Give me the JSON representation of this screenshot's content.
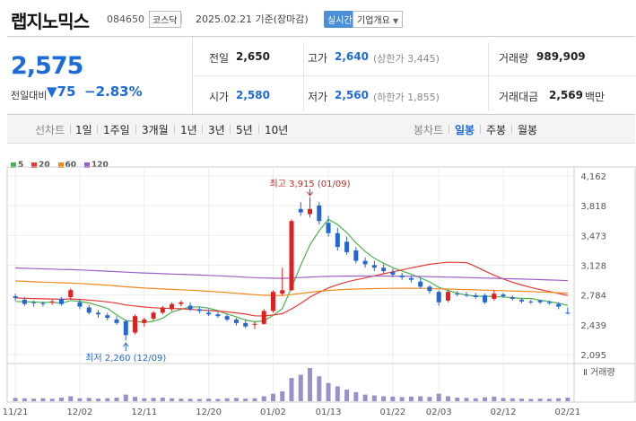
{
  "header": {
    "title": "랩지노믹스",
    "code": "084650",
    "market": "코스닥",
    "date": "2025.02.21 기준(장마감)",
    "realtime": "실시간",
    "overview": "기업개요"
  },
  "summary": {
    "price": "2,575",
    "change_label": "전일대비",
    "change_value": "75",
    "change_pct": "−2.83%",
    "prev_close_label": "전일",
    "prev_close": "2,650",
    "high_label": "고가",
    "high": "2,640",
    "upper_limit": "(상한가 3,445)",
    "volume_label": "거래량",
    "volume": "989,909",
    "open_label": "시가",
    "open": "2,580",
    "low_label": "저가",
    "low": "2,560",
    "lower_limit": "(하한가 1,855)",
    "trade_value_label": "거래대금",
    "trade_value": "2,569",
    "trade_value_unit": "백만"
  },
  "tabs": {
    "line_chart": "선차트",
    "periods": [
      "1일",
      "1주일",
      "3개월",
      "1년",
      "3년",
      "5년",
      "10년"
    ],
    "candle_chart": "봉차트",
    "candle_periods": [
      "일봉",
      "주봉",
      "월봉"
    ]
  },
  "chart_data": {
    "type": "candlestick",
    "legend": [
      "5",
      "20",
      "60",
      "120"
    ],
    "ma_colors": {
      "5": "#4caf50",
      "20": "#e53935",
      "60": "#ef8a1f",
      "120": "#9c5fc9"
    },
    "up_color": "#e02020",
    "down_color": "#2368d0",
    "y_ticks": [
      "4,162",
      "3,818",
      "3,473",
      "3,128",
      "2,784",
      "2,439",
      "2,095"
    ],
    "y_tick_values": [
      4162,
      3818,
      3473,
      3128,
      2784,
      2439,
      2095
    ],
    "ylim": [
      2095,
      4162
    ],
    "x_ticks": [
      "11/21",
      "12/02",
      "12/11",
      "12/20",
      "01/02",
      "01/13",
      "01/22",
      "02/03",
      "02/12",
      "02/21"
    ],
    "x_tick_index": [
      0,
      7,
      14,
      21,
      28,
      34,
      41,
      46,
      53,
      60
    ],
    "max_label": "최고 3,915 (01/09)",
    "max_index": 32,
    "min_label": "최저 2,260 (12/09)",
    "min_index": 12,
    "volume_label": "거래량",
    "candles": [
      [
        2770,
        2800,
        2720,
        2750
      ],
      [
        2730,
        2760,
        2660,
        2680
      ],
      [
        2700,
        2720,
        2650,
        2690
      ],
      [
        2690,
        2710,
        2650,
        2680
      ],
      [
        2700,
        2730,
        2670,
        2710
      ],
      [
        2740,
        2760,
        2660,
        2680
      ],
      [
        2760,
        2860,
        2740,
        2840
      ],
      [
        2700,
        2740,
        2620,
        2650
      ],
      [
        2640,
        2670,
        2560,
        2580
      ],
      [
        2580,
        2610,
        2520,
        2560
      ],
      [
        2550,
        2580,
        2490,
        2520
      ],
      [
        2500,
        2540,
        2440,
        2460
      ],
      [
        2480,
        2500,
        2260,
        2320
      ],
      [
        2350,
        2560,
        2330,
        2540
      ],
      [
        2460,
        2520,
        2420,
        2500
      ],
      [
        2510,
        2600,
        2490,
        2580
      ],
      [
        2580,
        2660,
        2560,
        2640
      ],
      [
        2620,
        2700,
        2600,
        2680
      ],
      [
        2680,
        2720,
        2650,
        2700
      ],
      [
        2660,
        2700,
        2600,
        2620
      ],
      [
        2620,
        2640,
        2570,
        2600
      ],
      [
        2580,
        2620,
        2540,
        2560
      ],
      [
        2560,
        2590,
        2520,
        2540
      ],
      [
        2540,
        2570,
        2480,
        2500
      ],
      [
        2500,
        2520,
        2430,
        2460
      ],
      [
        2460,
        2500,
        2400,
        2420
      ],
      [
        2440,
        2480,
        2390,
        2450
      ],
      [
        2450,
        2620,
        2440,
        2600
      ],
      [
        2600,
        2840,
        2580,
        2820
      ],
      [
        2800,
        3100,
        2780,
        2840
      ],
      [
        2840,
        3660,
        2830,
        3640
      ],
      [
        3780,
        3860,
        3700,
        3740
      ],
      [
        3720,
        3915,
        3680,
        3780
      ],
      [
        3820,
        3860,
        3600,
        3640
      ],
      [
        3620,
        3700,
        3460,
        3500
      ],
      [
        3500,
        3560,
        3300,
        3340
      ],
      [
        3400,
        3460,
        3250,
        3280
      ],
      [
        3300,
        3340,
        3150,
        3180
      ],
      [
        3180,
        3220,
        3100,
        3140
      ],
      [
        3130,
        3180,
        3060,
        3100
      ],
      [
        3100,
        3140,
        3030,
        3060
      ],
      [
        3050,
        3090,
        2990,
        3020
      ],
      [
        3010,
        3040,
        2960,
        2990
      ],
      [
        2980,
        3010,
        2930,
        2960
      ],
      [
        2940,
        2980,
        2860,
        2880
      ],
      [
        2880,
        2900,
        2800,
        2830
      ],
      [
        2820,
        2840,
        2660,
        2700
      ],
      [
        2720,
        2840,
        2700,
        2820
      ],
      [
        2800,
        2830,
        2770,
        2790
      ],
      [
        2790,
        2820,
        2760,
        2780
      ],
      [
        2780,
        2810,
        2740,
        2760
      ],
      [
        2780,
        2800,
        2680,
        2700
      ],
      [
        2740,
        2840,
        2720,
        2800
      ],
      [
        2790,
        2810,
        2750,
        2770
      ],
      [
        2760,
        2780,
        2720,
        2740
      ],
      [
        2730,
        2750,
        2690,
        2710
      ],
      [
        2710,
        2730,
        2680,
        2700
      ],
      [
        2720,
        2730,
        2680,
        2700
      ],
      [
        2700,
        2720,
        2670,
        2690
      ],
      [
        2680,
        2700,
        2620,
        2650
      ],
      [
        2580,
        2640,
        2560,
        2575
      ]
    ],
    "volume": [
      20,
      18,
      16,
      18,
      15,
      22,
      30,
      18,
      20,
      16,
      18,
      22,
      40,
      26,
      18,
      20,
      22,
      18,
      16,
      15,
      14,
      16,
      14,
      18,
      20,
      16,
      18,
      30,
      45,
      60,
      140,
      160,
      200,
      150,
      110,
      90,
      70,
      55,
      40,
      35,
      30,
      28,
      25,
      28,
      30,
      26,
      45,
      30,
      22,
      20,
      18,
      24,
      28,
      20,
      18,
      16,
      14,
      16,
      15,
      18,
      22
    ]
  }
}
